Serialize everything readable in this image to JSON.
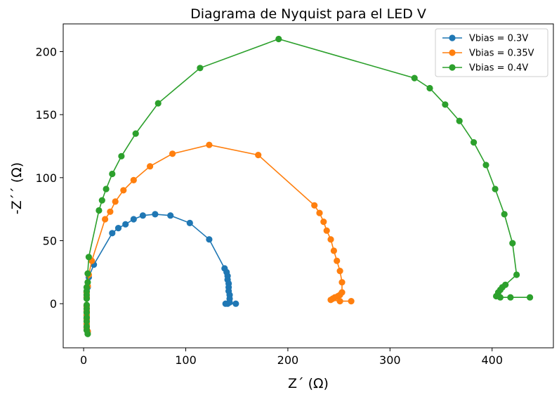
{
  "chart_data": {
    "type": "line",
    "title": "Diagrama de Nyquist para el LED V",
    "xlabel": "Z´ (Ω)",
    "ylabel": "-Z´´ (Ω)",
    "xlim": [
      -20,
      460
    ],
    "ylim": [
      -35,
      222
    ],
    "xticks": [
      0,
      100,
      200,
      300,
      400
    ],
    "yticks": [
      0,
      50,
      100,
      150,
      200
    ],
    "grid": false,
    "legend_position": "top-right",
    "series": [
      {
        "name": "Vbias = 0.3V",
        "color": "#1f77b4",
        "points": [
          [
            4,
            -22
          ],
          [
            3,
            -19
          ],
          [
            3,
            -16
          ],
          [
            3,
            -12
          ],
          [
            3,
            -9
          ],
          [
            3,
            -6
          ],
          [
            3,
            -2
          ],
          [
            3,
            5
          ],
          [
            3,
            9
          ],
          [
            4,
            13
          ],
          [
            5,
            21
          ],
          [
            10,
            31
          ],
          [
            28,
            56
          ],
          [
            34,
            60
          ],
          [
            41,
            63
          ],
          [
            49,
            67
          ],
          [
            58,
            70
          ],
          [
            70,
            71
          ],
          [
            85,
            70
          ],
          [
            104,
            64
          ],
          [
            123,
            51
          ],
          [
            138,
            28
          ],
          [
            140,
            25
          ],
          [
            141,
            22
          ],
          [
            141,
            19
          ],
          [
            142,
            16
          ],
          [
            142,
            13
          ],
          [
            142,
            10
          ],
          [
            143,
            7
          ],
          [
            143,
            4
          ],
          [
            143,
            1
          ],
          [
            141,
            0
          ],
          [
            139,
            0
          ],
          [
            149,
            0
          ]
        ]
      },
      {
        "name": "Vbias = 0.35V",
        "color": "#ff7f0e",
        "points": [
          [
            4,
            -22
          ],
          [
            3,
            -19
          ],
          [
            3,
            -16
          ],
          [
            3,
            -12
          ],
          [
            3,
            -9
          ],
          [
            3,
            -6
          ],
          [
            3,
            -2
          ],
          [
            3,
            5
          ],
          [
            3,
            9
          ],
          [
            4,
            14
          ],
          [
            5,
            23
          ],
          [
            8,
            34
          ],
          [
            21,
            67
          ],
          [
            26,
            73
          ],
          [
            31,
            81
          ],
          [
            39,
            90
          ],
          [
            49,
            98
          ],
          [
            65,
            109
          ],
          [
            87,
            119
          ],
          [
            123,
            126
          ],
          [
            171,
            118
          ],
          [
            226,
            78
          ],
          [
            231,
            72
          ],
          [
            235,
            65
          ],
          [
            238,
            58
          ],
          [
            242,
            51
          ],
          [
            245,
            42
          ],
          [
            248,
            34
          ],
          [
            251,
            26
          ],
          [
            253,
            17
          ],
          [
            253,
            9
          ],
          [
            251,
            7
          ],
          [
            249,
            6
          ],
          [
            246,
            5
          ],
          [
            244,
            4
          ],
          [
            242,
            3
          ],
          [
            251,
            2
          ],
          [
            262,
            2
          ]
        ]
      },
      {
        "name": "Vbias = 0.4V",
        "color": "#2ca02c",
        "points": [
          [
            4,
            -24
          ],
          [
            3,
            -21
          ],
          [
            3,
            -18
          ],
          [
            3,
            -14
          ],
          [
            3,
            -11
          ],
          [
            3,
            -7
          ],
          [
            3,
            -4
          ],
          [
            3,
            -1
          ],
          [
            3,
            4
          ],
          [
            3,
            7
          ],
          [
            3,
            10
          ],
          [
            3,
            13
          ],
          [
            4,
            17
          ],
          [
            4,
            24
          ],
          [
            5,
            37
          ],
          [
            15,
            74
          ],
          [
            18,
            82
          ],
          [
            22,
            91
          ],
          [
            28,
            103
          ],
          [
            37,
            117
          ],
          [
            51,
            135
          ],
          [
            73,
            159
          ],
          [
            114,
            187
          ],
          [
            191,
            210
          ],
          [
            324,
            179
          ],
          [
            339,
            171
          ],
          [
            354,
            158
          ],
          [
            368,
            145
          ],
          [
            382,
            128
          ],
          [
            394,
            110
          ],
          [
            403,
            91
          ],
          [
            412,
            71
          ],
          [
            420,
            48
          ],
          [
            424,
            23
          ],
          [
            413,
            15
          ],
          [
            410,
            13
          ],
          [
            408,
            11
          ],
          [
            406,
            9
          ],
          [
            404,
            6
          ],
          [
            408,
            5
          ],
          [
            418,
            5
          ],
          [
            437,
            5
          ]
        ]
      }
    ]
  }
}
